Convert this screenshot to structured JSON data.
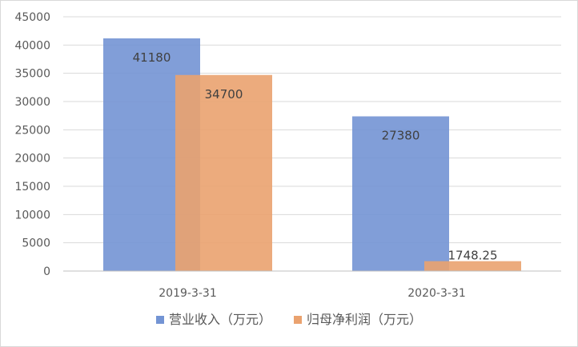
{
  "chart_data": {
    "type": "bar",
    "title": "",
    "xlabel": "",
    "ylabel": "",
    "categories": [
      "2019-3-31",
      "2020-3-31"
    ],
    "ylim": [
      0,
      45000
    ],
    "yticks": [
      0,
      5000,
      10000,
      15000,
      20000,
      25000,
      30000,
      35000,
      40000,
      45000
    ],
    "grid": true,
    "legend_position": "bottom",
    "series": [
      {
        "name": "营业收入（万元）",
        "color": "#7394d4",
        "values": [
          41180,
          27380
        ],
        "labels": [
          "41180",
          "27380"
        ]
      },
      {
        "name": "归母净利润（万元）",
        "color": "#eaa26f",
        "values": [
          34700,
          1748.25
        ],
        "labels": [
          "34700",
          "1748.25"
        ]
      }
    ]
  }
}
